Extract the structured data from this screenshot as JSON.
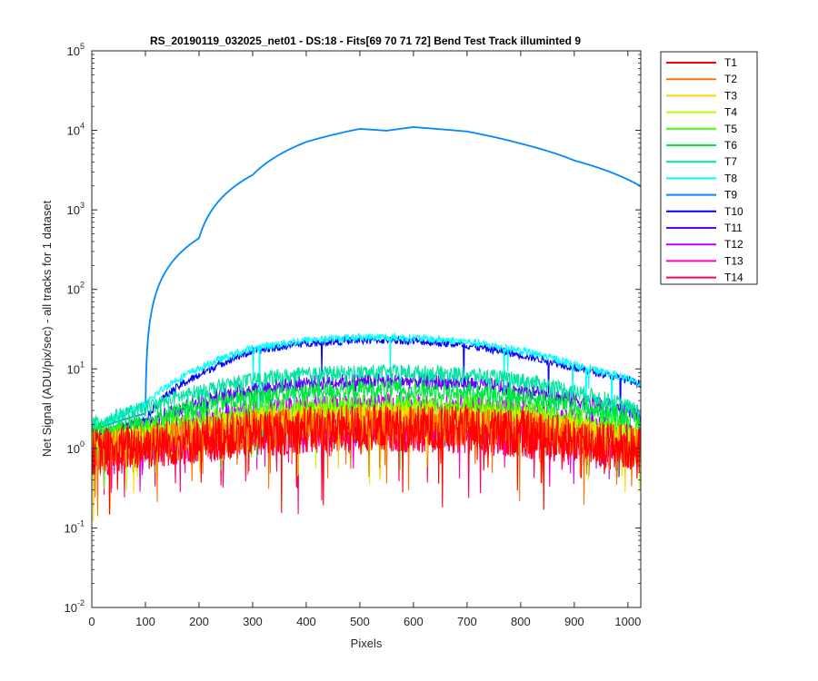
{
  "chart_data": {
    "type": "line",
    "title": "RS_20190119_032025_net01 - DS:18 - Fits[69  70  71  72]   Bend Test        Track illuminted 9",
    "xlabel": "Pixels",
    "ylabel": "Net Signal (ADU/pix/sec) - all tracks for 1 dataset",
    "yscale": "log",
    "xlim": [
      0,
      1024
    ],
    "ylim": [
      0.01,
      100000
    ],
    "x_ticks": [
      "0",
      "100",
      "200",
      "300",
      "400",
      "500",
      "600",
      "700",
      "800",
      "900",
      "1000"
    ],
    "y_ticks": [
      {
        "base": "10",
        "exp": "-2"
      },
      {
        "base": "10",
        "exp": "-1"
      },
      {
        "base": "10",
        "exp": "0"
      },
      {
        "base": "10",
        "exp": "1"
      },
      {
        "base": "10",
        "exp": "2"
      },
      {
        "base": "10",
        "exp": "3"
      },
      {
        "base": "10",
        "exp": "4"
      },
      {
        "base": "10",
        "exp": "5"
      }
    ],
    "legend_position": "outside-right",
    "x_profile_points": [
      0,
      100,
      200,
      300,
      400,
      500,
      550,
      600,
      700,
      800,
      900,
      1024
    ],
    "series": [
      {
        "name": "T1",
        "color": "#ff0000",
        "peak": 1.8,
        "profile": [
          0.5,
          0.6,
          0.72,
          0.85,
          0.95,
          1.0,
          1.0,
          1.0,
          0.95,
          0.85,
          0.7,
          0.55
        ],
        "noise": 0.3
      },
      {
        "name": "T2",
        "color": "#ff7000",
        "peak": 2.0,
        "profile": [
          0.45,
          0.55,
          0.7,
          0.85,
          0.95,
          1.0,
          1.0,
          1.0,
          0.95,
          0.85,
          0.7,
          0.5
        ],
        "noise": 0.25
      },
      {
        "name": "T3",
        "color": "#ffd700",
        "peak": 2.4,
        "profile": [
          0.42,
          0.52,
          0.68,
          0.84,
          0.95,
          1.0,
          1.0,
          1.0,
          0.95,
          0.85,
          0.68,
          0.48
        ],
        "noise": 0.18
      },
      {
        "name": "T4",
        "color": "#b8ff00",
        "peak": 2.8,
        "profile": [
          0.4,
          0.5,
          0.66,
          0.82,
          0.94,
          1.0,
          1.0,
          1.0,
          0.95,
          0.85,
          0.68,
          0.46
        ],
        "noise": 0.16
      },
      {
        "name": "T5",
        "color": "#40ff00",
        "peak": 3.5,
        "profile": [
          0.38,
          0.48,
          0.64,
          0.82,
          0.94,
          1.0,
          1.0,
          1.0,
          0.95,
          0.84,
          0.66,
          0.45
        ],
        "noise": 0.14
      },
      {
        "name": "T6",
        "color": "#00e640",
        "peak": 5.5,
        "profile": [
          0.28,
          0.4,
          0.6,
          0.8,
          0.94,
          1.0,
          1.0,
          1.0,
          0.94,
          0.82,
          0.62,
          0.4
        ],
        "noise": 0.12
      },
      {
        "name": "T7",
        "color": "#00e6a0",
        "peak": 9.0,
        "profile": [
          0.22,
          0.35,
          0.58,
          0.8,
          0.94,
          1.0,
          1.0,
          1.0,
          0.94,
          0.8,
          0.58,
          0.32
        ],
        "noise": 0.1
      },
      {
        "name": "T8",
        "color": "#00ffff",
        "peak": 25,
        "profile": [
          0.07,
          0.14,
          0.4,
          0.72,
          0.92,
          1.0,
          1.0,
          0.98,
          0.88,
          0.68,
          0.45,
          0.26
        ],
        "noise": 0.05
      },
      {
        "name": "T9",
        "color": "#0088ff",
        "peak": 11000,
        "profile": [
          0.00015,
          0.00025,
          0.04,
          0.25,
          0.65,
          0.95,
          0.9,
          1.0,
          0.88,
          0.62,
          0.38,
          0.18
        ],
        "noise": 0.01
      },
      {
        "name": "T10",
        "color": "#0000ff",
        "peak": 23,
        "profile": [
          0.06,
          0.1,
          0.36,
          0.72,
          0.92,
          1.0,
          1.0,
          0.98,
          0.86,
          0.65,
          0.45,
          0.28
        ],
        "noise": 0.05
      },
      {
        "name": "T11",
        "color": "#6000ff",
        "peak": 7.0,
        "profile": [
          0.18,
          0.28,
          0.55,
          0.8,
          0.95,
          1.0,
          1.0,
          1.0,
          0.94,
          0.78,
          0.58,
          0.38
        ],
        "noise": 0.1
      },
      {
        "name": "T12",
        "color": "#c000ff",
        "peak": 3.6,
        "profile": [
          0.32,
          0.42,
          0.62,
          0.82,
          0.94,
          1.0,
          1.0,
          1.0,
          0.95,
          0.84,
          0.62,
          0.42
        ],
        "noise": 0.14
      },
      {
        "name": "T13",
        "color": "#ff00c8",
        "peak": 2.0,
        "profile": [
          0.45,
          0.55,
          0.7,
          0.85,
          0.95,
          1.0,
          1.0,
          1.0,
          0.95,
          0.85,
          0.7,
          0.5
        ],
        "noise": 0.22
      },
      {
        "name": "T14",
        "color": "#ff0060",
        "peak": 1.7,
        "profile": [
          0.48,
          0.58,
          0.72,
          0.85,
          0.95,
          1.0,
          1.0,
          1.0,
          0.95,
          0.85,
          0.7,
          0.52
        ],
        "noise": 0.28
      }
    ]
  }
}
